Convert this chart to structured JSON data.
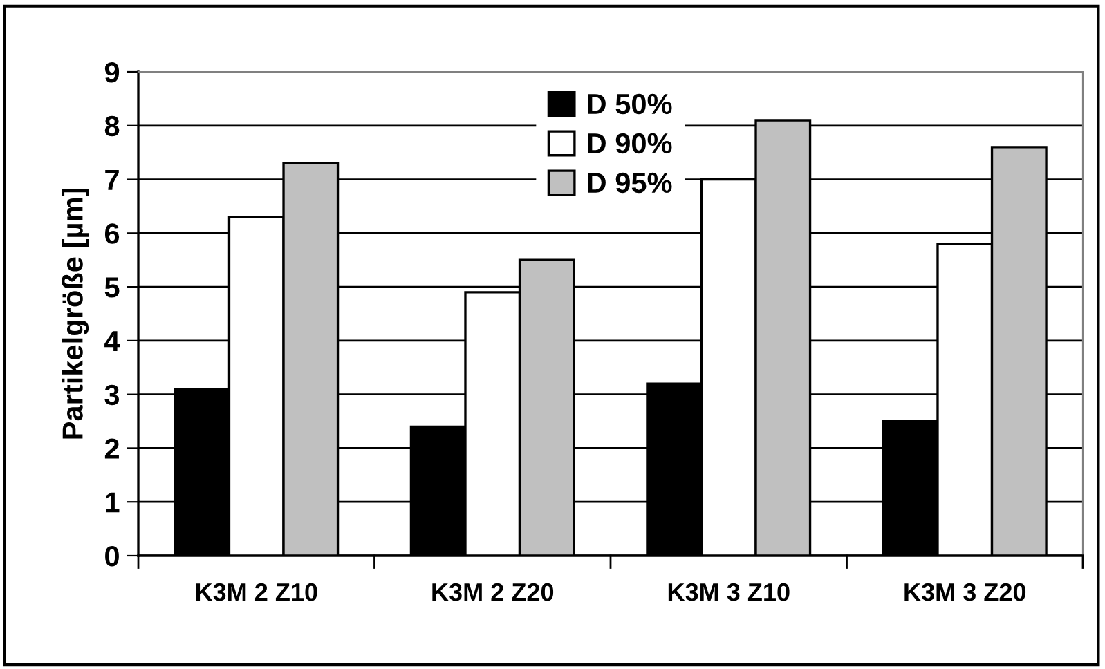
{
  "chart_data": {
    "type": "bar",
    "ylabel": "Partikelgröße [µm]",
    "categories": [
      "K3M 2 Z10",
      "K3M 2 Z20",
      "K3M 3 Z10",
      "K3M 3 Z20"
    ],
    "series": [
      {
        "name": "D 50%",
        "color": "#000000",
        "values": [
          3.1,
          2.4,
          3.2,
          2.5
        ]
      },
      {
        "name": "D 90%",
        "color": "#ffffff",
        "values": [
          6.3,
          4.9,
          7.0,
          5.8
        ]
      },
      {
        "name": "D 95%",
        "color": "#c0c0c0",
        "values": [
          7.3,
          5.5,
          8.1,
          7.6
        ]
      }
    ],
    "ylim": [
      0,
      9
    ],
    "yticks": [
      0,
      1,
      2,
      3,
      4,
      5,
      6,
      7,
      8,
      9
    ],
    "grid": "y",
    "legend": "top"
  }
}
